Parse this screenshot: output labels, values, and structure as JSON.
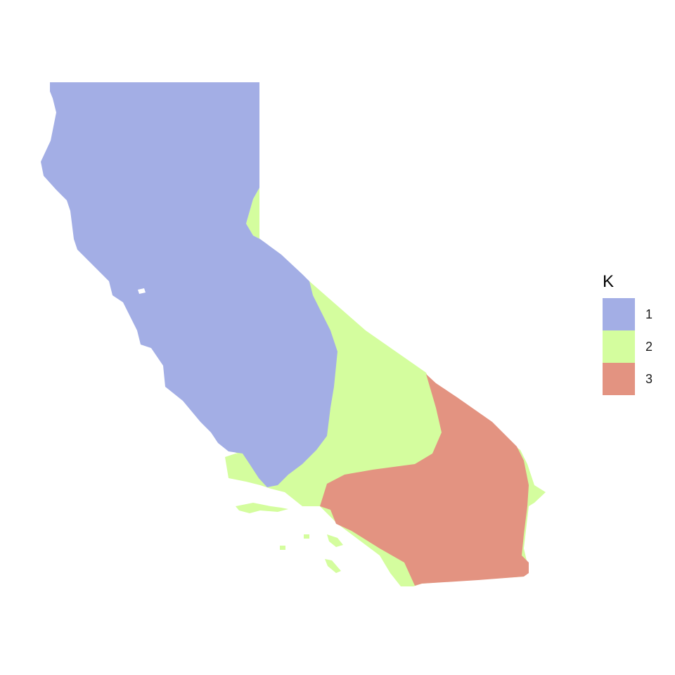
{
  "map": {
    "region": "California",
    "legend": {
      "title": "K",
      "items": [
        {
          "label": "1",
          "color": "#A3AEE5"
        },
        {
          "label": "2",
          "color": "#D4FD9E"
        },
        {
          "label": "3",
          "color": "#E39381"
        }
      ]
    }
  }
}
